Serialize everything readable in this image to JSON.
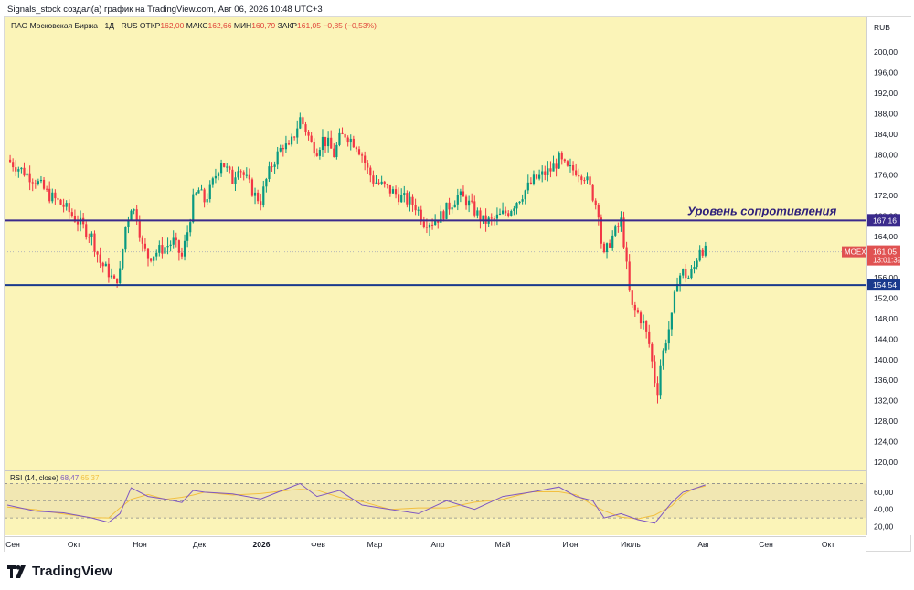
{
  "caption": "Signals_stock создал(а) график на TradingView.com, Авг 06, 2026 10:48 UTC+3",
  "legend": {
    "symbol": "ПАО Московская Биржа · 1Д · RUS",
    "open_label": "ОТКР",
    "open": "162,00",
    "high_label": "МАКС",
    "high": "162,66",
    "low_label": "МИН",
    "low": "160,79",
    "close_label": "ЗАКР",
    "close": "161,05",
    "change": "−0,85 (−0,53%)"
  },
  "currency": "RUB",
  "branding": "TradingView",
  "colors": {
    "up": "#089981",
    "down": "#f23645",
    "panel": "#fbf4b8",
    "resistance": "#3a2a8c",
    "support": "#1a3a8c",
    "rsi": "#7e57c2",
    "rsi_ma": "#f2c040"
  },
  "chart_data": [
    {
      "type": "candlestick",
      "title": "ПАО Московская Биржа · 1Д · RUS",
      "x_ticks": [
        "Сен",
        "Окт",
        "Ноя",
        "Дек",
        "2026",
        "Фев",
        "Мар",
        "Апр",
        "Май",
        "Июн",
        "Июль",
        "Авг",
        "Сен",
        "Окт"
      ],
      "y_ticks": [
        "200,00",
        "196,00",
        "192,00",
        "188,00",
        "184,00",
        "180,00",
        "176,00",
        "172,00",
        "168,00",
        "164,00",
        "160,00",
        "156,00",
        "152,00",
        "148,00",
        "144,00",
        "140,00",
        "136,00",
        "132,00",
        "128,00",
        "124,00",
        "120,00"
      ],
      "y_values": [
        200,
        196,
        192,
        188,
        184,
        180,
        176,
        172,
        168,
        164,
        160,
        156,
        152,
        148,
        144,
        140,
        136,
        132,
        128,
        124,
        120
      ],
      "ylim": [
        118,
        204
      ],
      "resistance": {
        "value": 167.16,
        "label": "167,16",
        "annotation": "Уровень сопротивления"
      },
      "support": {
        "value": 154.54,
        "label": "154,54"
      },
      "last_price": {
        "ticker": "MOEX",
        "value": "161,05",
        "countdown": "13:01:39",
        "numeric": 161.05
      },
      "close_path": [
        [
          0,
          179
        ],
        [
          5,
          177
        ],
        [
          10,
          175
        ],
        [
          15,
          172
        ],
        [
          20,
          170
        ],
        [
          25,
          167
        ],
        [
          30,
          164
        ],
        [
          33,
          159
        ],
        [
          36,
          157
        ],
        [
          38,
          155
        ],
        [
          40,
          157
        ],
        [
          42,
          166
        ],
        [
          44,
          170
        ],
        [
          46,
          168
        ],
        [
          48,
          162
        ],
        [
          50,
          160
        ],
        [
          53,
          161
        ],
        [
          56,
          162
        ],
        [
          59,
          163
        ],
        [
          62,
          160
        ],
        [
          64,
          165
        ],
        [
          66,
          171
        ],
        [
          68,
          173
        ],
        [
          70,
          171
        ],
        [
          72,
          173
        ],
        [
          74,
          176
        ],
        [
          76,
          179
        ],
        [
          78,
          177
        ],
        [
          80,
          175
        ],
        [
          82,
          178
        ],
        [
          84,
          176
        ],
        [
          86,
          174
        ],
        [
          88,
          172
        ],
        [
          90,
          171
        ],
        [
          92,
          175
        ],
        [
          94,
          178
        ],
        [
          96,
          180
        ],
        [
          98,
          182
        ],
        [
          100,
          181
        ],
        [
          102,
          184
        ],
        [
          104,
          187
        ],
        [
          106,
          185
        ],
        [
          108,
          182
        ],
        [
          110,
          181
        ],
        [
          112,
          183
        ],
        [
          114,
          182
        ],
        [
          116,
          180
        ],
        [
          118,
          183
        ],
        [
          120,
          184
        ],
        [
          122,
          183
        ],
        [
          124,
          182
        ],
        [
          126,
          180
        ],
        [
          128,
          177
        ],
        [
          130,
          175
        ],
        [
          133,
          174
        ],
        [
          136,
          173
        ],
        [
          139,
          172
        ],
        [
          142,
          171
        ],
        [
          145,
          170
        ],
        [
          148,
          167
        ],
        [
          151,
          167
        ],
        [
          154,
          168
        ],
        [
          157,
          170
        ],
        [
          160,
          172
        ],
        [
          163,
          171
        ],
        [
          166,
          169
        ],
        [
          169,
          167
        ],
        [
          172,
          167
        ],
        [
          175,
          168
        ],
        [
          178,
          169
        ],
        [
          181,
          171
        ],
        [
          184,
          173
        ],
        [
          187,
          175
        ],
        [
          190,
          176
        ],
        [
          193,
          177
        ],
        [
          196,
          179
        ],
        [
          199,
          177
        ],
        [
          202,
          177
        ],
        [
          205,
          176
        ],
        [
          208,
          172
        ],
        [
          210,
          169
        ],
        [
          211,
          163
        ],
        [
          212,
          160
        ],
        [
          214,
          163
        ],
        [
          216,
          165
        ],
        [
          218,
          167
        ],
        [
          219,
          163
        ],
        [
          220,
          158
        ],
        [
          221,
          153
        ],
        [
          222,
          150
        ],
        [
          224,
          149
        ],
        [
          226,
          147
        ],
        [
          228,
          143
        ],
        [
          230,
          136
        ],
        [
          231,
          134
        ],
        [
          232,
          139
        ],
        [
          234,
          144
        ],
        [
          236,
          148
        ],
        [
          237,
          152
        ],
        [
          238,
          156
        ],
        [
          240,
          157
        ],
        [
          242,
          156
        ],
        [
          244,
          158
        ],
        [
          246,
          162
        ],
        [
          248,
          161.05
        ]
      ],
      "close_path_x_units": "trading day index",
      "rsi": {
        "label": "RSI (14, close)",
        "value": "68,47",
        "ma_value": "65,37",
        "y_ticks": [
          "60,00",
          "40,00",
          "20,00"
        ],
        "y_values": [
          60,
          40,
          20
        ],
        "levels": [
          70,
          50,
          30
        ],
        "path": [
          [
            0,
            45
          ],
          [
            10,
            38
          ],
          [
            20,
            36
          ],
          [
            30,
            30
          ],
          [
            36,
            25
          ],
          [
            40,
            35
          ],
          [
            44,
            65
          ],
          [
            50,
            55
          ],
          [
            56,
            52
          ],
          [
            62,
            48
          ],
          [
            66,
            62
          ],
          [
            70,
            60
          ],
          [
            80,
            58
          ],
          [
            90,
            52
          ],
          [
            100,
            65
          ],
          [
            104,
            70
          ],
          [
            110,
            55
          ],
          [
            118,
            62
          ],
          [
            126,
            45
          ],
          [
            136,
            40
          ],
          [
            146,
            35
          ],
          [
            156,
            50
          ],
          [
            166,
            40
          ],
          [
            176,
            55
          ],
          [
            186,
            60
          ],
          [
            196,
            66
          ],
          [
            202,
            55
          ],
          [
            208,
            50
          ],
          [
            212,
            30
          ],
          [
            218,
            35
          ],
          [
            224,
            28
          ],
          [
            230,
            24
          ],
          [
            236,
            48
          ],
          [
            240,
            60
          ],
          [
            244,
            64
          ],
          [
            248,
            68.47
          ]
        ]
      }
    }
  ]
}
